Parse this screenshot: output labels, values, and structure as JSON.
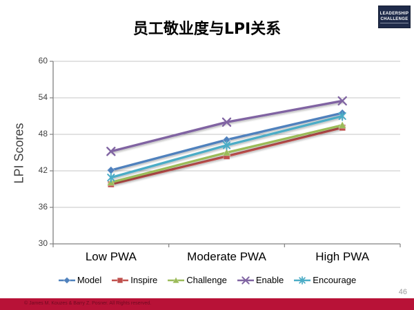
{
  "slide": {
    "title": "员工敬业度与LPI关系"
  },
  "logo": {
    "line1": "LEADERSHIP",
    "line2": "CHALLENGE"
  },
  "chart_data": {
    "type": "line",
    "title": "员工敬业度与LPI关系",
    "categories": [
      "Low PWA",
      "Moderate PWA",
      "High PWA"
    ],
    "series": [
      {
        "name": "Model",
        "marker": "diamond",
        "color": "#4F81BD",
        "values": [
          42.1,
          47.1,
          51.5
        ]
      },
      {
        "name": "Inspire",
        "marker": "square",
        "color": "#C0504D",
        "values": [
          39.8,
          44.4,
          49.1
        ]
      },
      {
        "name": "Challenge",
        "marker": "triangle",
        "color": "#9BBB59",
        "values": [
          40.1,
          45.0,
          49.5
        ]
      },
      {
        "name": "Enable",
        "marker": "x",
        "color": "#8064A2",
        "values": [
          45.2,
          50.0,
          53.5
        ]
      },
      {
        "name": "Encourage",
        "marker": "asterisk",
        "color": "#4BACC6",
        "values": [
          40.9,
          46.2,
          51.0
        ]
      }
    ],
    "xlabel": "",
    "ylabel": "LPI Scores",
    "ylim": [
      30,
      60
    ],
    "yticks": [
      30,
      36,
      42,
      48,
      54,
      60
    ],
    "grid": "horizontal",
    "legend_position": "bottom",
    "gridline_color": "#C6C6C6",
    "axis_color": "#808080"
  },
  "footer": {
    "page_number": "46",
    "copyright": "© James M. Kouzes & Barry Z. Posner. All Rights reserved."
  },
  "colors": {
    "accent_bar": "#B81237",
    "logo_bg": "#1F2B4A"
  }
}
